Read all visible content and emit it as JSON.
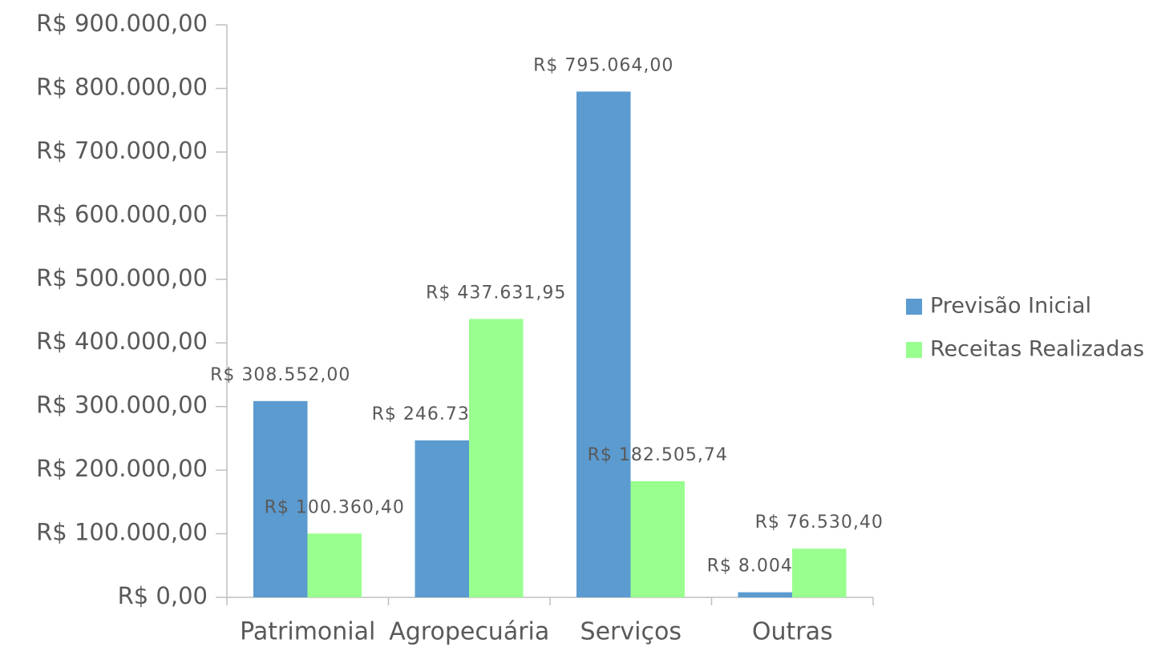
{
  "chart_data": {
    "type": "bar",
    "categories": [
      "Patrimonial",
      "Agropecuária",
      "Serviços",
      "Outras"
    ],
    "series": [
      {
        "name": "Previsão Inicial",
        "color": "#5b9bd0",
        "values": [
          308552,
          246730,
          795064,
          8004
        ],
        "value_labels": [
          "R$ 308.552,00",
          "R$ 246.730,00",
          "R$ 795.064,00",
          "R$ 8.004,00"
        ]
      },
      {
        "name": "Receitas Realizadas",
        "color": "#99ff8f",
        "values": [
          100360.4,
          437631.95,
          182505.74,
          76530.4
        ],
        "value_labels": [
          "R$ 100.360,40",
          "R$ 437.631,95",
          "R$ 182.505,74",
          "R$ 76.530,40"
        ]
      }
    ],
    "ylim": [
      0,
      900000
    ],
    "yticks": [
      {
        "value": 0,
        "label": "R$ 0,00"
      },
      {
        "value": 100000,
        "label": "R$ 100.000,00"
      },
      {
        "value": 200000,
        "label": "R$ 200.000,00"
      },
      {
        "value": 300000,
        "label": "R$ 300.000,00"
      },
      {
        "value": 400000,
        "label": "R$ 400.000,00"
      },
      {
        "value": 500000,
        "label": "R$ 500.000,00"
      },
      {
        "value": 600000,
        "label": "R$ 600.000,00"
      },
      {
        "value": 700000,
        "label": "R$ 700.000,00"
      },
      {
        "value": 800000,
        "label": "R$ 800.000,00"
      },
      {
        "value": 900000,
        "label": "R$ 900.000,00"
      }
    ],
    "legend": "right"
  }
}
